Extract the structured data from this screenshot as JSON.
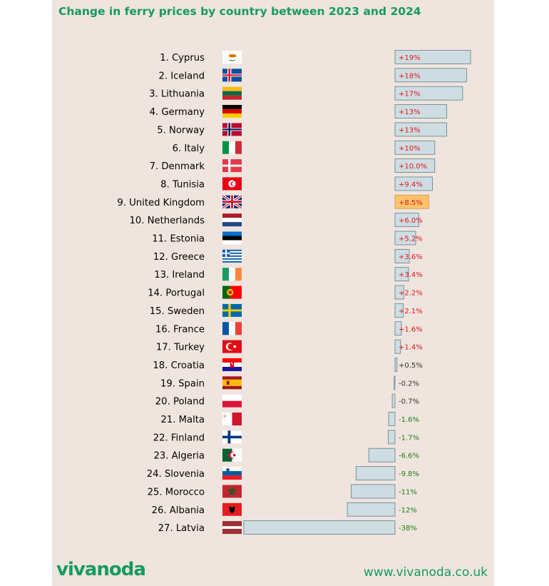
{
  "title": "Change in ferry prices by country between 2023 and 2024",
  "footer": {
    "logo": "vivanoda",
    "url": "www.vivanoda.co.uk"
  },
  "colors": {
    "brand": "#159a5f",
    "bar_fill": "#cddde2",
    "bar_stroke": "#5f7f8d",
    "highlight_fill": "#fcc36b",
    "highlight_stroke": "#c99a4f",
    "positive_text": "#e4161b",
    "negative_text": "#1e7e12",
    "neutral_text": "#333333"
  },
  "chart_data": {
    "type": "bar",
    "orientation": "horizontal",
    "grid": false,
    "legend": "none",
    "highlight": "9. United Kingdom",
    "categories": [
      "1. Cyprus",
      "2. Iceland",
      "3. Lithuania",
      "4. Germany",
      "5. Norway",
      "6. Italy",
      "7. Denmark",
      "8. Tunisia",
      "9. United Kingdom",
      "10. Netherlands",
      "11. Estonia",
      "12. Greece",
      "13. Ireland",
      "14. Portugal",
      "15. Sweden",
      "16. France",
      "17. Turkey",
      "18. Croatia",
      "19. Spain",
      "20. Poland",
      "21. Malta",
      "22. Finland",
      "23. Algeria",
      "24. Slovenia",
      "25. Morocco",
      "26. Albania",
      "27. Latvia"
    ],
    "values": [
      19,
      18,
      17,
      13,
      13,
      10,
      10.0,
      9.4,
      8.5,
      6.0,
      5.2,
      3.6,
      3.4,
      2.2,
      2.1,
      1.6,
      1.4,
      0.5,
      -0.2,
      -0.7,
      -1.6,
      -1.7,
      -6.6,
      -9.8,
      -11,
      -12,
      -38
    ],
    "value_labels": [
      "+19%",
      "+18%",
      "+17%",
      "+13%",
      "+13%",
      "+10%",
      "+10.0%",
      "+9.4%",
      "+8.5%",
      "+6.0%",
      "+5.2%",
      "+3.6%",
      "+3.4%",
      "+2.2%",
      "+2.1%",
      "+1.6%",
      "+1.4%",
      "+0.5%",
      "-0.2%",
      "-0.7%",
      "-1.6%",
      "-1.7%",
      "-6.6%",
      "-9.8%",
      "-11%",
      "-12%",
      "-38%"
    ],
    "flag_icons": [
      "cyprus-flag-icon",
      "iceland-flag-icon",
      "lithuania-flag-icon",
      "germany-flag-icon",
      "norway-flag-icon",
      "italy-flag-icon",
      "denmark-flag-icon",
      "tunisia-flag-icon",
      "uk-flag-icon",
      "netherlands-flag-icon",
      "estonia-flag-icon",
      "greece-flag-icon",
      "ireland-flag-icon",
      "portugal-flag-icon",
      "sweden-flag-icon",
      "france-flag-icon",
      "turkey-flag-icon",
      "croatia-flag-icon",
      "spain-flag-icon",
      "poland-flag-icon",
      "malta-flag-icon",
      "finland-flag-icon",
      "algeria-flag-icon",
      "slovenia-flag-icon",
      "morocco-flag-icon",
      "albania-flag-icon",
      "latvia-flag-icon"
    ]
  }
}
